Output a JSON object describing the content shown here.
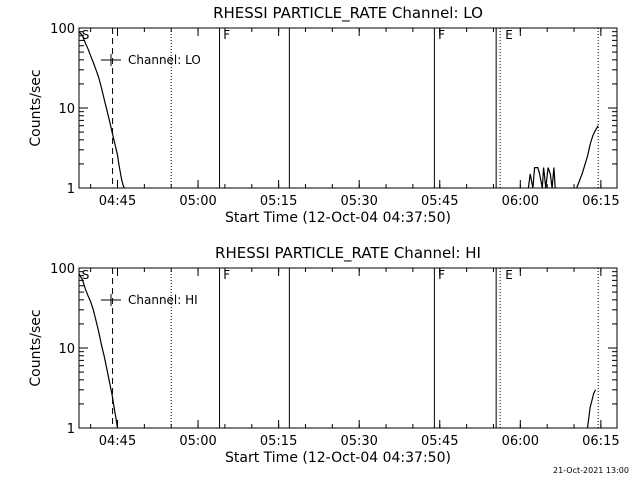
{
  "footer_timestamp": "21-Oct-2021 13:00",
  "chart_data": [
    {
      "type": "line",
      "title": "RHESSI PARTICLE_RATE Channel: LO",
      "xlabel": "Start Time (12-Oct-04 04:37:50)",
      "ylabel": "Counts/sec",
      "y_scale": "log",
      "xlim": [
        "04:37:50",
        "06:18:00"
      ],
      "ylim": [
        1,
        100
      ],
      "x_ticks": [
        "04:45",
        "05:00",
        "05:15",
        "05:30",
        "05:45",
        "06:00",
        "06:15"
      ],
      "y_ticks": [
        "1",
        "10",
        "100"
      ],
      "legend": {
        "label": "Channel: LO",
        "position": "top-left"
      },
      "vlines": [
        {
          "x": "04:44:05",
          "style": "dashed"
        },
        {
          "x": "04:55:00",
          "style": "dotted"
        },
        {
          "x": "05:04:00",
          "style": "solid"
        },
        {
          "x": "05:17:00",
          "style": "solid"
        },
        {
          "x": "05:44:00",
          "style": "solid"
        },
        {
          "x": "05:55:30",
          "style": "solid"
        },
        {
          "x": "05:56:15",
          "style": "dotted"
        },
        {
          "x": "06:14:30",
          "style": "dotted"
        }
      ],
      "markers": [
        {
          "label": "S",
          "x": "04:38:10"
        },
        {
          "label": "F",
          "x": "05:04:30"
        },
        {
          "label": "F",
          "x": "05:44:30"
        },
        {
          "label": "E",
          "x": "05:57:00"
        }
      ],
      "series": [
        {
          "x": [
            "04:37:50",
            "04:38:30",
            "04:39:00",
            "04:39:30",
            "04:40:00",
            "04:40:30",
            "04:41:00",
            "04:41:30",
            "04:42:00",
            "04:42:30",
            "04:43:00",
            "04:43:30",
            "04:44:00",
            "04:44:30",
            "04:45:00",
            "04:45:15",
            "04:45:30",
            "04:45:45",
            "04:46:00",
            "04:46:15"
          ],
          "y": [
            90,
            80,
            65,
            55,
            45,
            37,
            30,
            24,
            18,
            13,
            9.5,
            7,
            5,
            3.6,
            2.6,
            2.0,
            1.6,
            1.3,
            1.1,
            1.0
          ]
        },
        {
          "x": [
            "06:01:30",
            "06:01:50",
            "06:02:20",
            "06:02:40",
            "06:02:55",
            "06:03:15",
            "06:03:35",
            "06:04:05",
            "06:04:20",
            "06:04:45",
            "06:05:10",
            "06:05:35",
            "06:05:55",
            "06:06:15",
            "06:06:30"
          ],
          "y": [
            1,
            1.5,
            1,
            1.8,
            1.8,
            1.8,
            1.5,
            1,
            1.8,
            1,
            1.8,
            1.5,
            1,
            1.8,
            1
          ]
        },
        {
          "x": [
            "06:10:30",
            "06:11:30",
            "06:12:30",
            "06:13:00",
            "06:13:30",
            "06:14:00",
            "06:14:30"
          ],
          "y": [
            1,
            1.5,
            2.5,
            3.5,
            4.5,
            5.3,
            6
          ]
        }
      ]
    },
    {
      "type": "line",
      "title": "RHESSI PARTICLE_RATE Channel: HI",
      "xlabel": "Start Time (12-Oct-04 04:37:50)",
      "ylabel": "Counts/sec",
      "y_scale": "log",
      "xlim": [
        "04:37:50",
        "06:18:00"
      ],
      "ylim": [
        1,
        100
      ],
      "x_ticks": [
        "04:45",
        "05:00",
        "05:15",
        "05:30",
        "05:45",
        "06:00",
        "06:15"
      ],
      "y_ticks": [
        "1",
        "10",
        "100"
      ],
      "legend": {
        "label": "Channel: HI",
        "position": "top-left"
      },
      "vlines": [
        {
          "x": "04:44:05",
          "style": "dashed"
        },
        {
          "x": "04:55:00",
          "style": "dotted"
        },
        {
          "x": "05:04:00",
          "style": "solid"
        },
        {
          "x": "05:17:00",
          "style": "solid"
        },
        {
          "x": "05:44:00",
          "style": "solid"
        },
        {
          "x": "05:55:30",
          "style": "solid"
        },
        {
          "x": "05:56:15",
          "style": "dotted"
        },
        {
          "x": "06:14:30",
          "style": "dotted"
        }
      ],
      "markers": [
        {
          "label": "S",
          "x": "04:38:10"
        },
        {
          "label": "F",
          "x": "05:04:30"
        },
        {
          "label": "F",
          "x": "05:44:30"
        },
        {
          "label": "E",
          "x": "05:57:00"
        }
      ],
      "series": [
        {
          "x": [
            "04:37:50",
            "04:38:30",
            "04:39:00",
            "04:39:30",
            "04:40:00",
            "04:40:30",
            "04:41:00",
            "04:41:30",
            "04:42:00",
            "04:42:30",
            "04:43:00",
            "04:43:30",
            "04:44:00",
            "04:44:15",
            "04:44:30",
            "04:44:45",
            "04:45:00"
          ],
          "y": [
            85,
            70,
            55,
            45,
            38,
            30,
            22,
            16,
            11,
            8,
            5.5,
            3.8,
            2.6,
            2.0,
            1.6,
            1.3,
            1.0
          ]
        },
        {
          "x": [
            "06:12:30",
            "06:13:00",
            "06:13:20",
            "06:13:40",
            "06:14:00"
          ],
          "y": [
            1,
            1.8,
            2.2,
            2.7,
            3.0
          ]
        }
      ]
    }
  ]
}
